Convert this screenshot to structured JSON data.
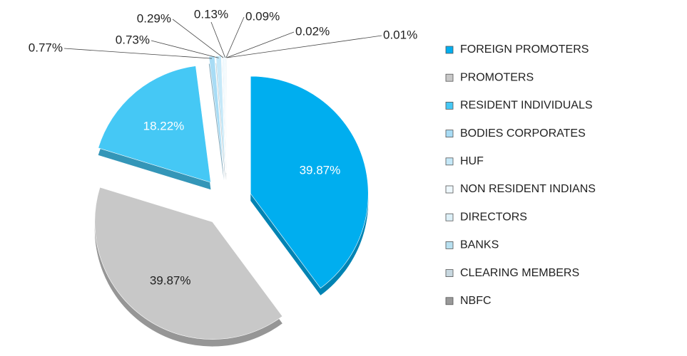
{
  "chart_data": {
    "type": "pie",
    "categories": [
      "FOREIGN PROMOTERS",
      "PROMOTERS",
      "RESIDENT INDIVIDUALS",
      "BODIES CORPORATES",
      "HUF",
      "NON RESIDENT INDIANS",
      "DIRECTORS",
      "BANKS",
      "CLEARING MEMBERS",
      "NBFC"
    ],
    "values": [
      39.87,
      39.87,
      18.22,
      0.77,
      0.73,
      0.29,
      0.13,
      0.09,
      0.02,
      0.01
    ],
    "value_labels": [
      "39.87%",
      "39.87%",
      "18.22%",
      "0.77%",
      "0.73%",
      "0.29%",
      "0.13%",
      "0.09%",
      "0.02%",
      "0.01%"
    ],
    "colors": [
      "#00aeef",
      "#c8c8c8",
      "#45c8f5",
      "#a8dcf5",
      "#c5e8f8",
      "#eef8fd",
      "#ddf0f8",
      "#b8e0f0",
      "#c8d8e0",
      "#999999"
    ],
    "legend": "right"
  }
}
